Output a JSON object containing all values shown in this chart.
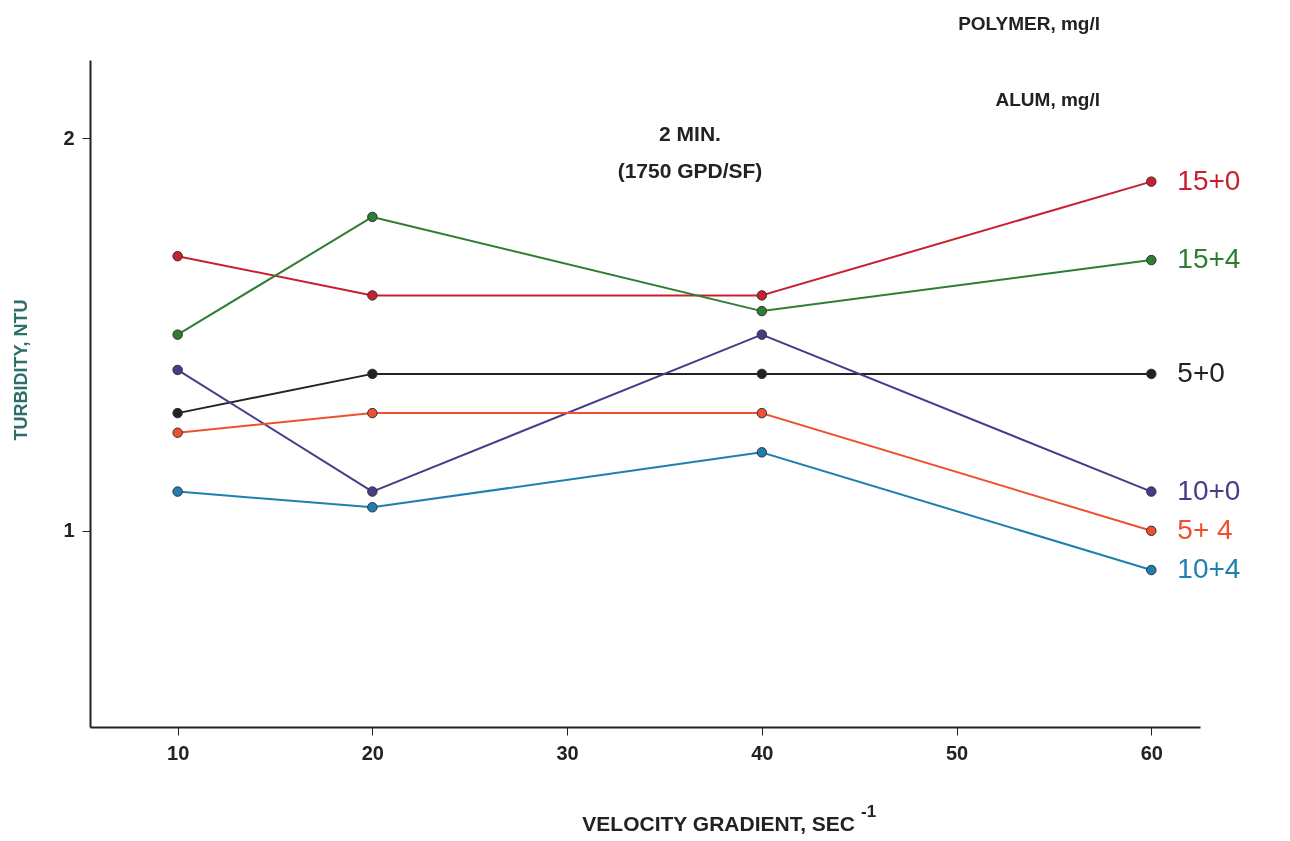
{
  "chart_data": {
    "type": "line",
    "xlabel": "VELOCITY GRADIENT, SEC$^{-1}$",
    "ylabel": "TURBIDITY, NTU",
    "x": [
      10,
      20,
      40,
      60
    ],
    "series": [
      {
        "name": "15+0",
        "color": "#c8202f",
        "values": [
          1.7,
          1.6,
          1.6,
          1.89
        ]
      },
      {
        "name": "15+4",
        "color": "#2e7d32",
        "values": [
          1.5,
          1.8,
          1.56,
          1.69
        ]
      },
      {
        "name": "5+0",
        "color": "#222222",
        "values": [
          1.3,
          1.4,
          1.4,
          1.4
        ]
      },
      {
        "name": "10+0",
        "color": "#4a3a8a",
        "values": [
          1.41,
          1.1,
          1.5,
          1.1
        ]
      },
      {
        "name": "5+ 4",
        "color": "#f05030",
        "values": [
          1.25,
          1.3,
          1.3,
          1.0
        ]
      },
      {
        "name": "10+4",
        "color": "#1f7fb0",
        "values": [
          1.1,
          1.06,
          1.2,
          0.9
        ]
      }
    ],
    "annotations": [
      "POLYMER, mg/l",
      "ALUM, mg/l",
      "2 MIN.",
      "(1750 GPD/SF)"
    ],
    "xlim": [
      5.5,
      62.5
    ],
    "xticks": [
      10,
      20,
      30,
      40,
      50,
      60
    ],
    "ylim": [
      0.5,
      2.2
    ],
    "yticks": [
      1,
      2
    ],
    "grid": false,
    "legend": false,
    "marker": "circle",
    "line_style": "solid"
  }
}
